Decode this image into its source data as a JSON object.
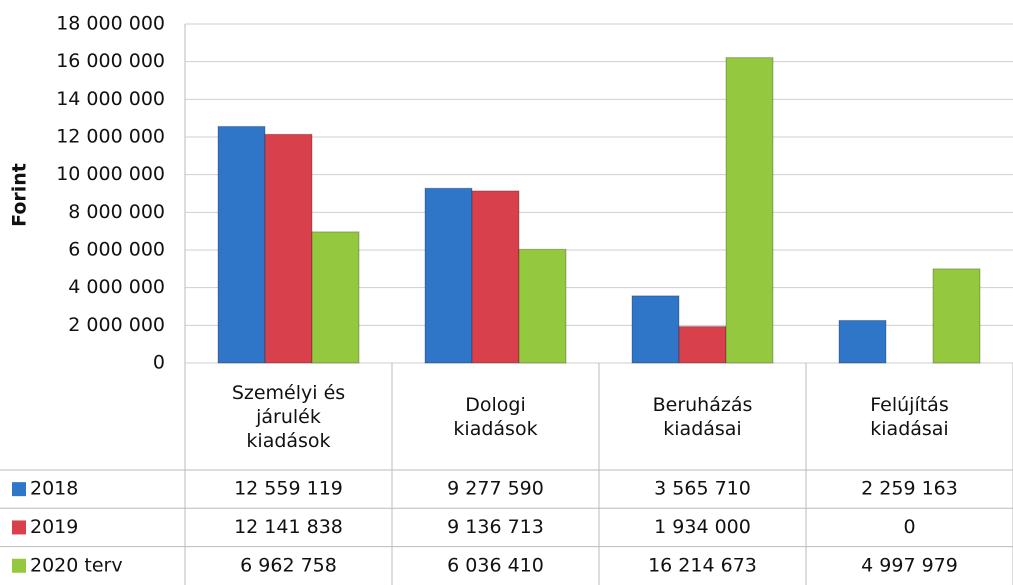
{
  "chart_data": {
    "type": "bar",
    "y_label": "Forint",
    "categories": [
      "Személyi és\njárulék\nkiadások",
      "Dologi\nkiadások",
      "Beruházás\nkiadásai",
      "Felújítás\nkiadásai"
    ],
    "series": [
      {
        "name": "2018",
        "color": "#2f76c9",
        "values": [
          12559119,
          9277590,
          3565710,
          2259163
        ],
        "value_labels": [
          "12 559 119",
          "9 277 590",
          "3 565 710",
          "2 259 163"
        ]
      },
      {
        "name": "2019",
        "color": "#d8404b",
        "values": [
          12141838,
          9136713,
          1934000,
          0
        ],
        "value_labels": [
          "12 141 838",
          "9 136 713",
          "1 934 000",
          "0"
        ]
      },
      {
        "name": "2020 terv",
        "color": "#93c83f",
        "values": [
          6962758,
          6036410,
          16214673,
          4997979
        ],
        "value_labels": [
          "6 962 758",
          "6 036 410",
          "16 214 673",
          "4 997 979"
        ]
      }
    ],
    "ylim": [
      0,
      18000000
    ],
    "yticks": [
      0,
      {
        "value": 2000000,
        "label": "2 000 000"
      },
      {
        "value": 4000000,
        "label": "4 000 000"
      },
      {
        "value": 6000000,
        "label": "6 000 000"
      },
      {
        "value": 8000000,
        "label": "8 000 000"
      },
      {
        "value": 10000000,
        "label": "10 000 000"
      },
      {
        "value": 12000000,
        "label": "12 000 000"
      },
      {
        "value": 14000000,
        "label": "14 000 000"
      },
      {
        "value": 16000000,
        "label": "16 000 000"
      },
      {
        "value": 18000000,
        "label": "18 000 000"
      }
    ],
    "grid": true
  }
}
